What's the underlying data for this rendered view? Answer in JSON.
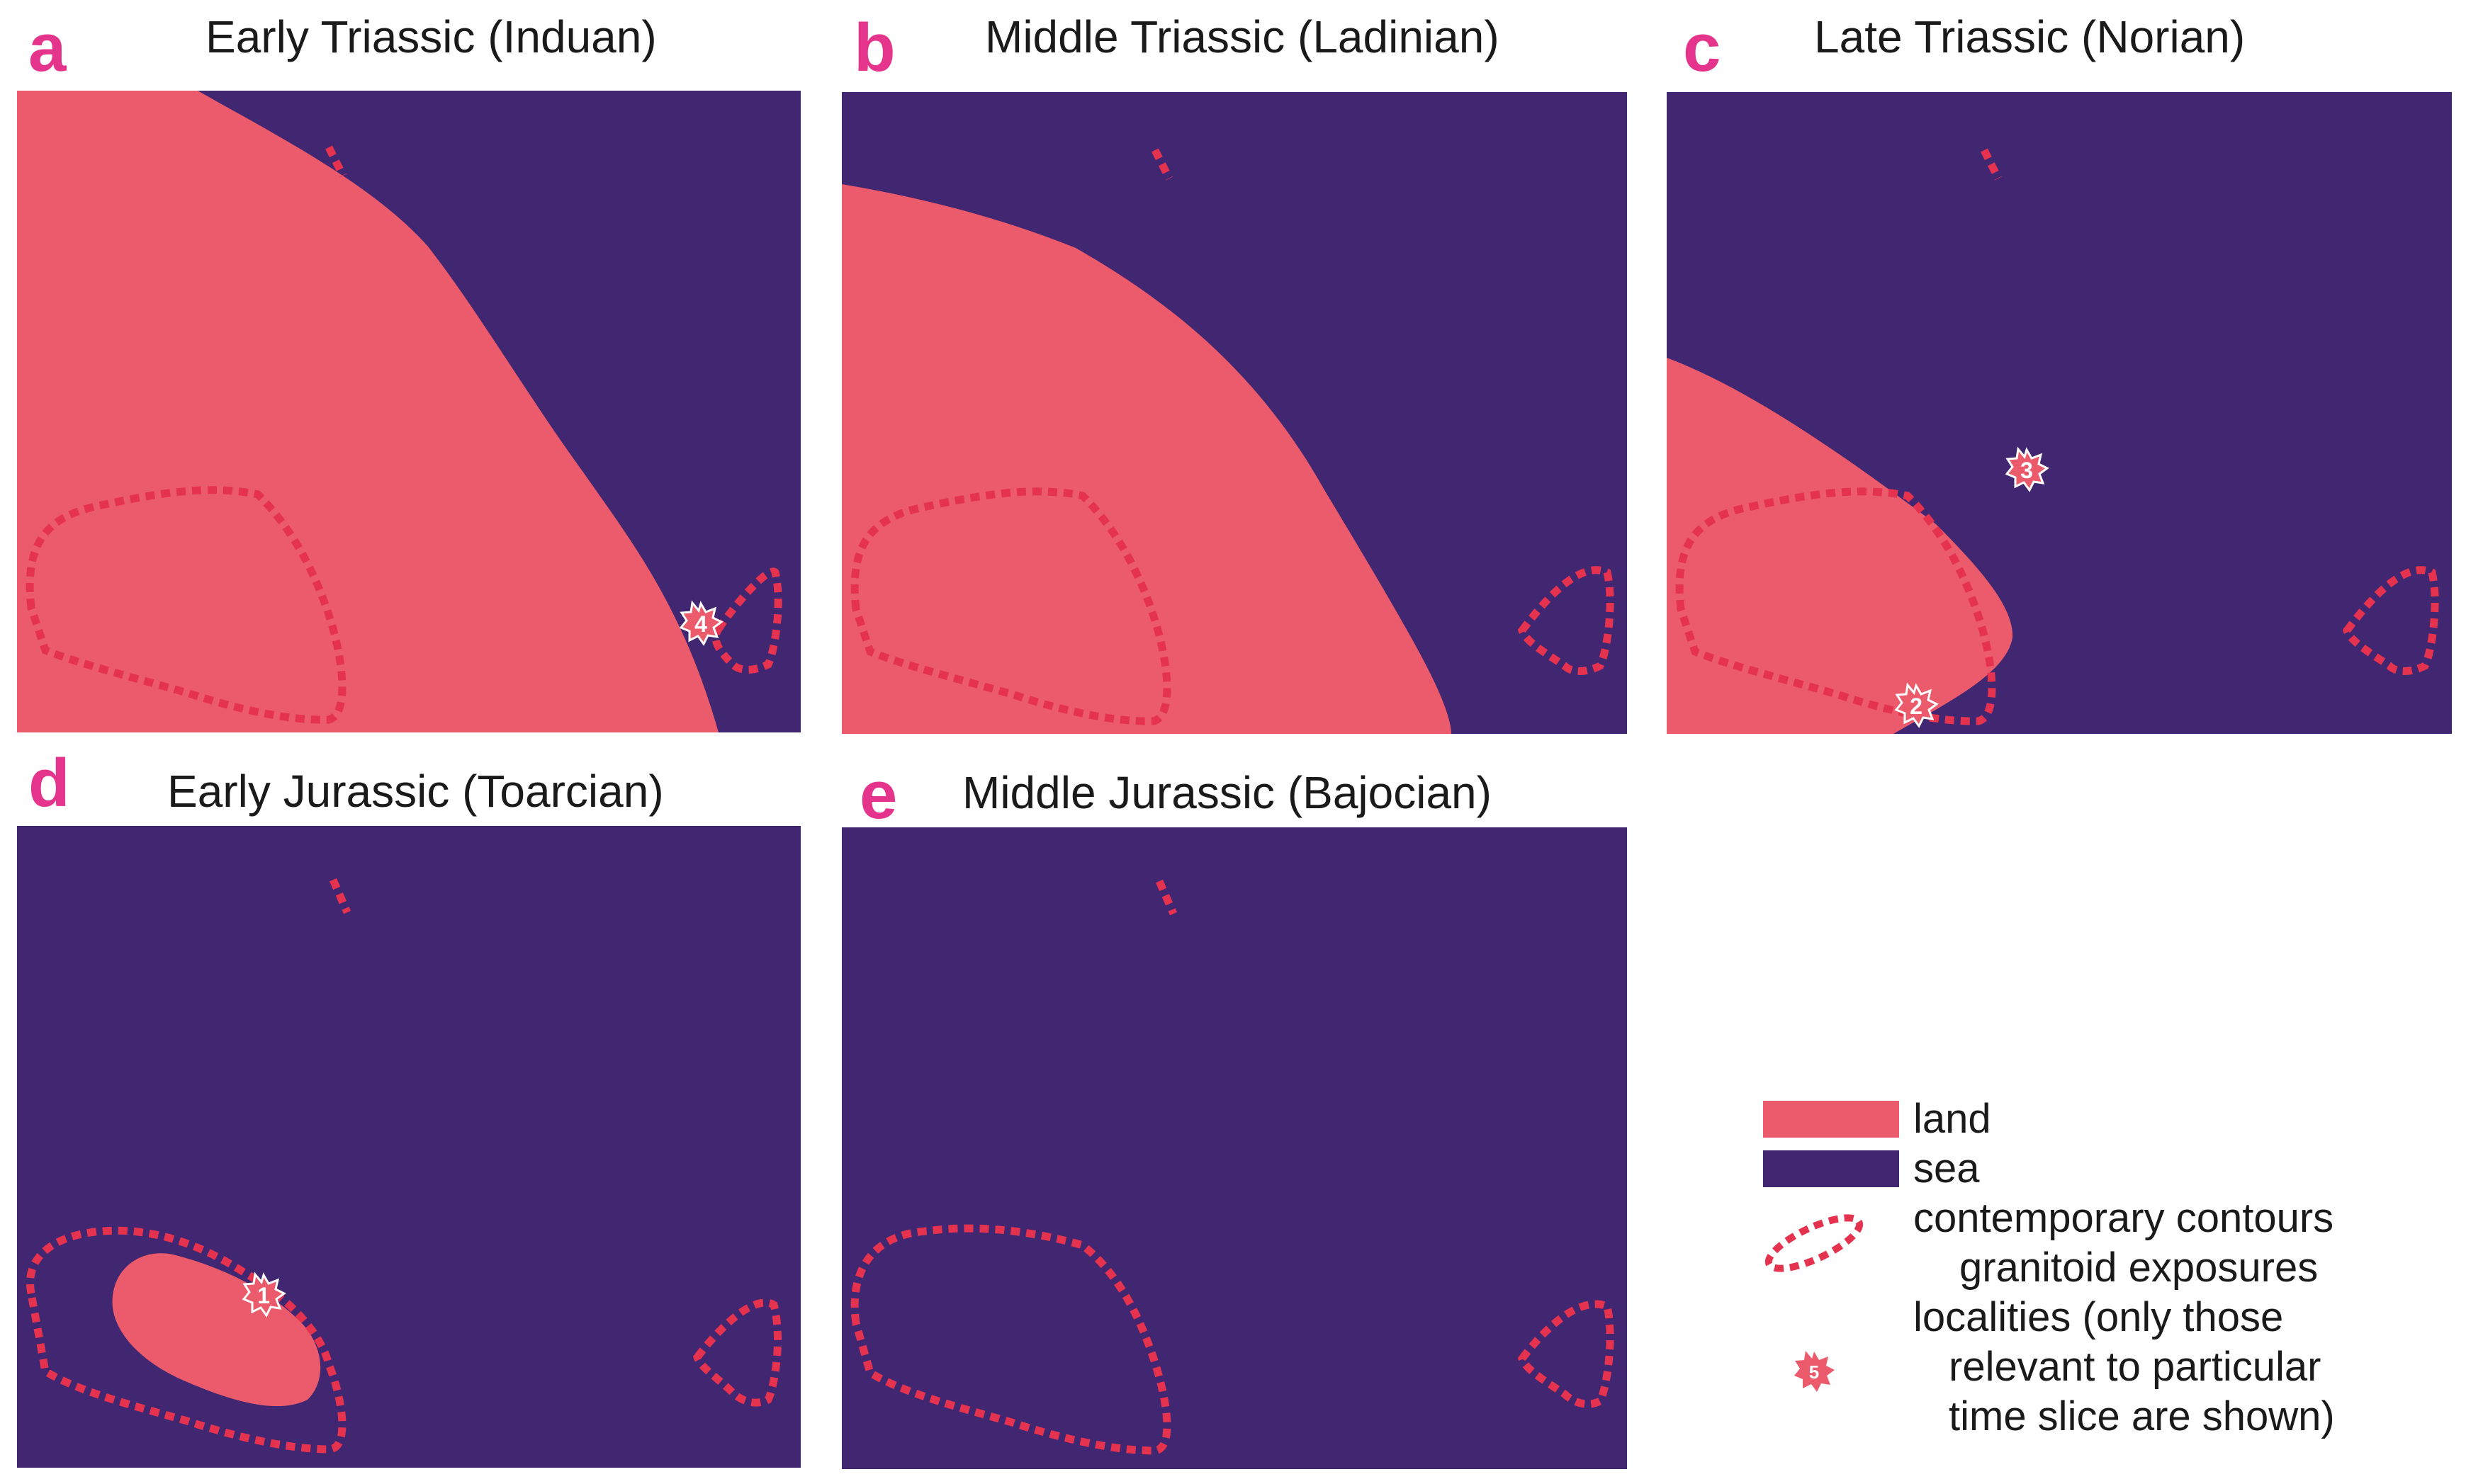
{
  "colors": {
    "land": "#eb5b6c",
    "sea": "#412671",
    "contour": "#e5334f",
    "accent": "#e5348b"
  },
  "panels": [
    {
      "letter": "a",
      "title": "Early Triassic (Induan)",
      "locality": "4"
    },
    {
      "letter": "b",
      "title": "Middle Triassic (Ladinian)"
    },
    {
      "letter": "c",
      "title": "Late Triassic (Norian)",
      "localities": [
        "3",
        "2"
      ]
    },
    {
      "letter": "d",
      "title": "Early Jurassic (Toarcian)",
      "locality": "1"
    },
    {
      "letter": "e",
      "title": "Middle Jurassic (Bajocian)"
    }
  ],
  "legend": {
    "land": "land",
    "sea": "sea",
    "contours_line1": "contemporary contours",
    "contours_line2": "granitoid exposures",
    "localities_line1": "localities (only those",
    "localities_line2": "relevant to particular",
    "localities_line3": "time slice are shown)",
    "sample_number": "5"
  }
}
